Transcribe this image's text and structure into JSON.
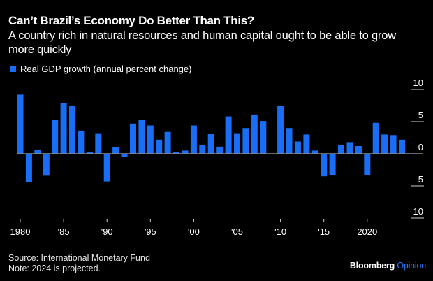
{
  "header": {
    "title": "Can’t Brazil’s Economy Do Better Than This?",
    "subtitle": "A country rich in natural resources and human capital ought to be able to grow more quickly"
  },
  "footer": {
    "source": "Source: International Monetary Fund",
    "note": "Note: 2024 is projected.",
    "brand": "Bloomberg",
    "brand_accent": "Opinion"
  },
  "colors": {
    "bar": "#1a6ef5",
    "zero_line": "#8c8c8c",
    "background": "#000000",
    "brand_accent": "#2b7bff"
  },
  "chart_data": {
    "type": "bar",
    "title": "Can’t Brazil’s Economy Do Better Than This?",
    "subtitle": "A country rich in natural resources and human capital ought to be able to grow more quickly",
    "xlabel": "",
    "ylabel": "",
    "legend": {
      "entries": [
        "Real GDP growth (annual percent change)"
      ],
      "placement": "top-left"
    },
    "ylim": [
      -10,
      10
    ],
    "y_ticks": [
      10,
      5,
      0,
      -5,
      -10
    ],
    "y_tick_labels": [
      "10",
      "5",
      "0",
      "-5",
      "-10"
    ],
    "y_axis_side": "right",
    "x_ticks": [
      1980,
      1985,
      1990,
      1995,
      2000,
      2005,
      2010,
      2015,
      2020
    ],
    "x_tick_labels": [
      "1980",
      "'85",
      "'90",
      "'95",
      "'00",
      "'05",
      "'10",
      "'15",
      "2020"
    ],
    "grid": false,
    "categories": [
      1980,
      1981,
      1982,
      1983,
      1984,
      1985,
      1986,
      1987,
      1988,
      1989,
      1990,
      1991,
      1992,
      1993,
      1994,
      1995,
      1996,
      1997,
      1998,
      1999,
      2000,
      2001,
      2002,
      2003,
      2004,
      2005,
      2006,
      2007,
      2008,
      2009,
      2010,
      2011,
      2012,
      2013,
      2014,
      2015,
      2016,
      2017,
      2018,
      2019,
      2020,
      2021,
      2022,
      2023,
      2024
    ],
    "series": [
      {
        "name": "Real GDP growth (annual percent change)",
        "values": [
          9.2,
          -4.4,
          0.6,
          -3.4,
          5.3,
          7.9,
          7.5,
          3.6,
          0.3,
          3.2,
          -4.3,
          1.0,
          -0.5,
          4.7,
          5.3,
          4.4,
          2.2,
          3.4,
          0.3,
          0.5,
          4.4,
          1.4,
          3.1,
          1.1,
          5.8,
          3.2,
          4.0,
          6.1,
          5.1,
          -0.1,
          7.5,
          4.0,
          1.9,
          3.0,
          0.5,
          -3.5,
          -3.3,
          1.3,
          1.8,
          1.2,
          -3.3,
          4.8,
          3.0,
          2.9,
          2.2
        ]
      }
    ],
    "annotations": [
      "2024 is projected."
    ]
  }
}
